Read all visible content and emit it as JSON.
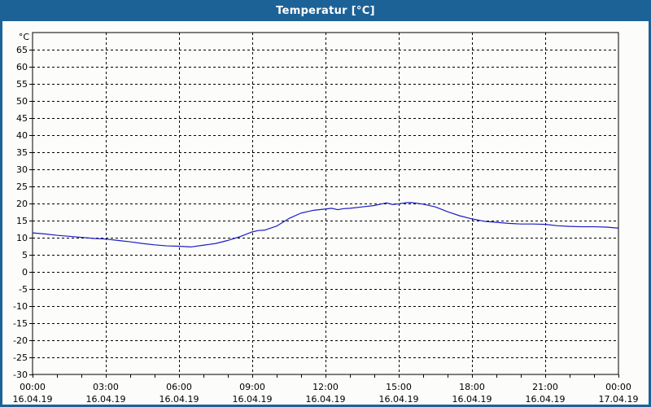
{
  "window": {
    "title": "Temperatur [°C]"
  },
  "colors": {
    "title_bar": "#1d6296",
    "window_border": "#1d6296",
    "title_text": "#ffffff",
    "content_bg": "#fcfdfa",
    "curve": "#1c1cc8",
    "grid": "#000000",
    "text": "#000000"
  },
  "chart_data": {
    "type": "line",
    "title": "Temperatur [°C]",
    "y_unit": "°C",
    "ylim": [
      -30,
      70
    ],
    "y_ticks": [
      65,
      60,
      55,
      50,
      45,
      40,
      35,
      30,
      25,
      20,
      15,
      10,
      5,
      0,
      -5,
      -10,
      -15,
      -20,
      -25,
      -30
    ],
    "x_hours_range": [
      0,
      24
    ],
    "x_grid_every_hours": 3,
    "x_minor_tick_every_hours": 1,
    "grid": "dashed",
    "legend": "none",
    "x_major_ticks": [
      {
        "hour": 0,
        "time": "00:00",
        "date": "16.04.19"
      },
      {
        "hour": 3,
        "time": "03:00",
        "date": "16.04.19"
      },
      {
        "hour": 6,
        "time": "06:00",
        "date": "16.04.19"
      },
      {
        "hour": 9,
        "time": "09:00",
        "date": "16.04.19"
      },
      {
        "hour": 12,
        "time": "12:00",
        "date": "16.04.19"
      },
      {
        "hour": 15,
        "time": "15:00",
        "date": "16.04.19"
      },
      {
        "hour": 18,
        "time": "18:00",
        "date": "16.04.19"
      },
      {
        "hour": 21,
        "time": "21:00",
        "date": "16.04.19"
      },
      {
        "hour": 24,
        "time": "00:00",
        "date": "17.04.19"
      }
    ],
    "series": [
      {
        "name": "Temperatur",
        "color": "#1c1cc8",
        "x_hours": [
          0,
          0.5,
          1,
          1.5,
          2,
          2.5,
          3,
          3.5,
          4,
          4.5,
          5,
          5.5,
          6,
          6.5,
          7,
          7.5,
          8,
          8.5,
          9,
          9.25,
          9.5,
          10,
          10.5,
          11,
          11.5,
          12,
          12.25,
          12.5,
          12.75,
          13,
          13.5,
          14,
          14.25,
          14.5,
          14.75,
          15,
          15.25,
          15.5,
          16,
          16.5,
          17,
          17.5,
          18,
          18.5,
          19,
          19.5,
          20,
          20.5,
          21,
          21.5,
          22,
          22.5,
          23,
          23.5,
          24
        ],
        "values": [
          11.4,
          11.1,
          10.7,
          10.4,
          10.1,
          9.8,
          9.6,
          9.2,
          8.8,
          8.3,
          7.9,
          7.6,
          7.5,
          7.3,
          7.8,
          8.3,
          9.2,
          10.3,
          11.7,
          12.1,
          12.2,
          13.4,
          15.6,
          17.2,
          18.0,
          18.4,
          18.6,
          18.2,
          18.5,
          18.6,
          19.0,
          19.4,
          19.8,
          20.2,
          19.7,
          19.9,
          20.2,
          20.3,
          19.8,
          19.0,
          17.6,
          16.4,
          15.5,
          14.8,
          14.5,
          14.2,
          14.0,
          14.0,
          13.9,
          13.5,
          13.3,
          13.2,
          13.2,
          13.1,
          12.8
        ]
      }
    ]
  }
}
